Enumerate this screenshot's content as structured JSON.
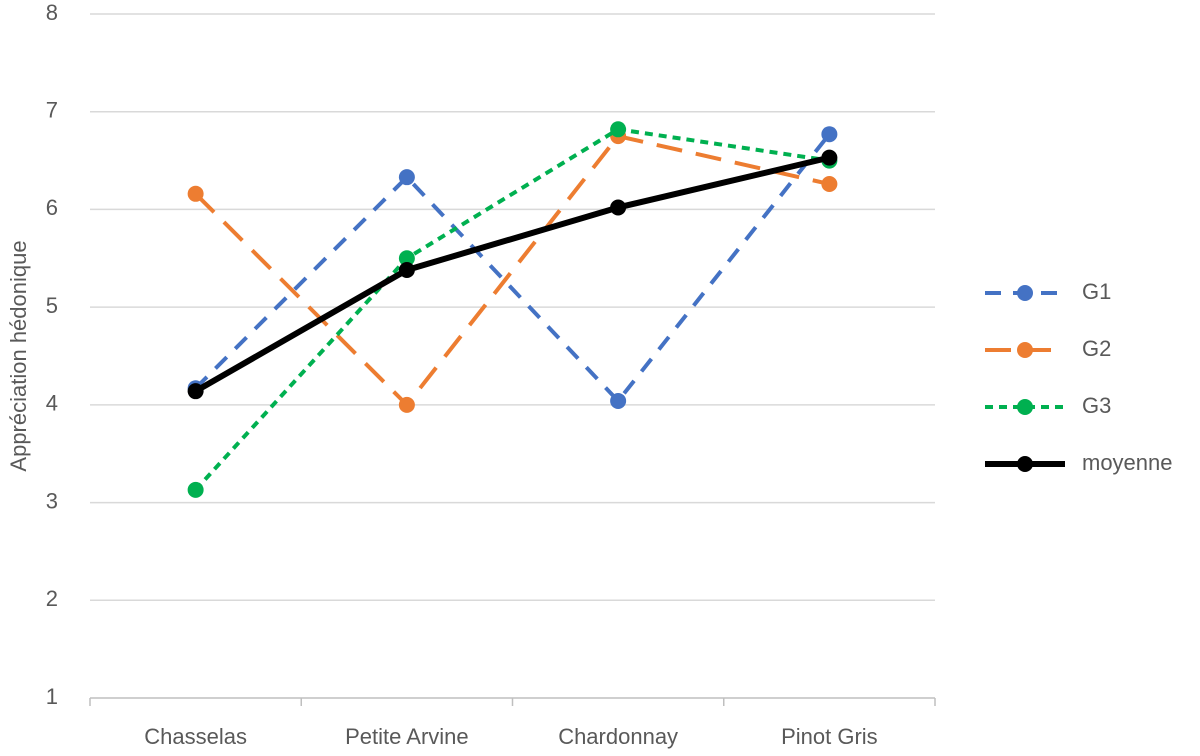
{
  "chart_data": {
    "type": "line",
    "ylabel": "Appréciation hédonique",
    "categories": [
      "Chasselas",
      "Petite Arvine",
      "Chardonnay",
      "Pinot Gris"
    ],
    "series": [
      {
        "name": "G1",
        "color": "#4472c4",
        "dash": "dashed",
        "values": [
          4.17,
          6.33,
          4.04,
          6.77
        ]
      },
      {
        "name": "G2",
        "color": "#ed7d31",
        "dash": "long-dashed",
        "values": [
          6.16,
          4.0,
          6.75,
          6.26
        ]
      },
      {
        "name": "G3",
        "color": "#00b050",
        "dash": "dotted",
        "values": [
          3.13,
          5.5,
          6.82,
          6.5
        ]
      },
      {
        "name": "moyenne",
        "color": "#000000",
        "dash": "solid",
        "values": [
          4.14,
          5.38,
          6.02,
          6.53
        ]
      }
    ],
    "ylim": [
      1,
      8
    ],
    "yticks": [
      1,
      2,
      3,
      4,
      5,
      6,
      7,
      8
    ],
    "grid": true,
    "legend": "right"
  }
}
